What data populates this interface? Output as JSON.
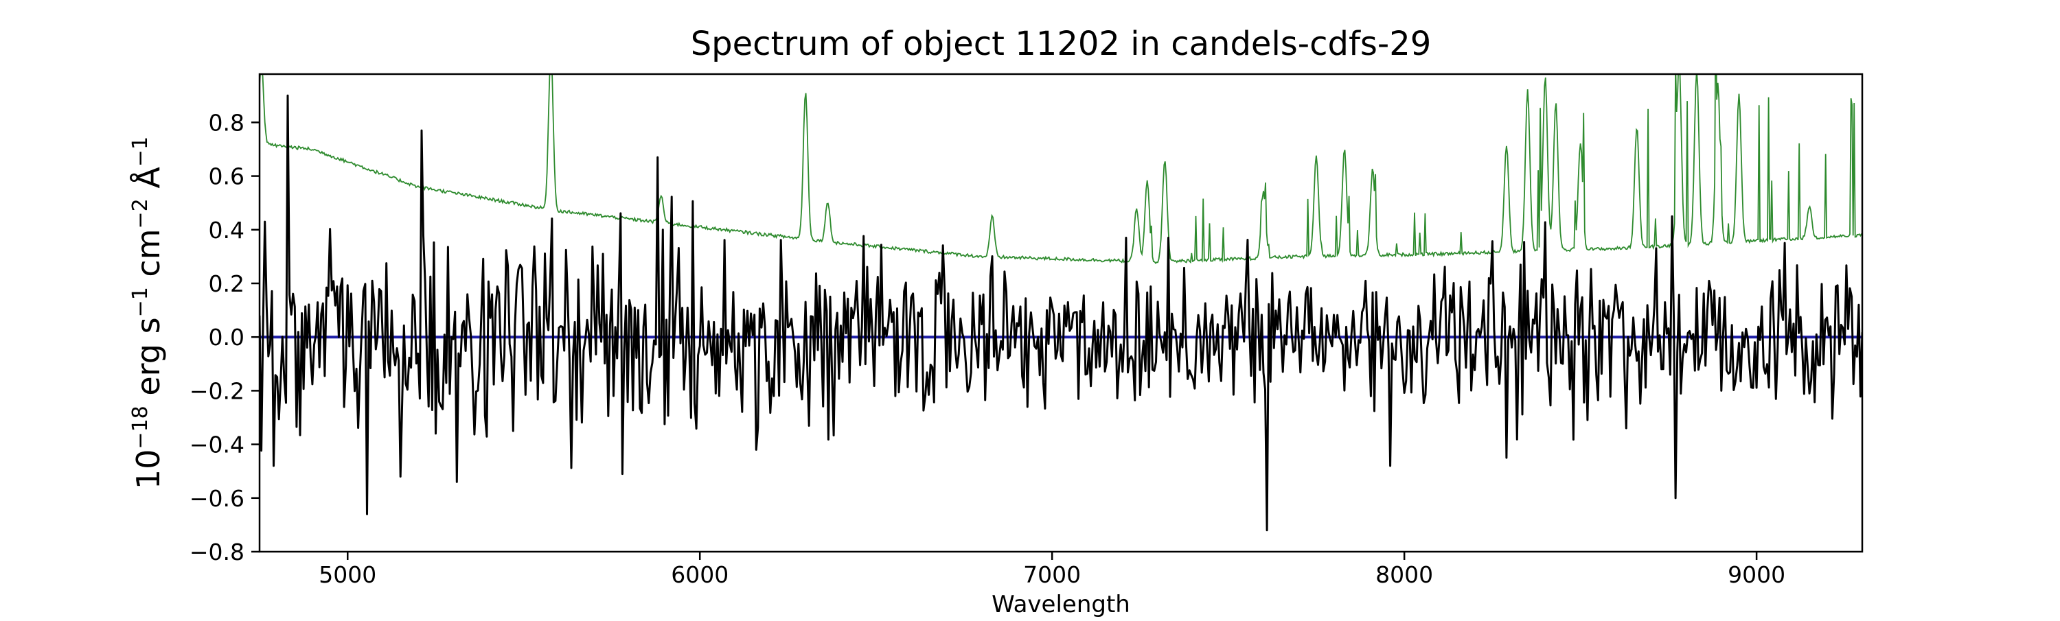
{
  "chart_data": {
    "type": "line",
    "title": "Spectrum of object 11202 in candels-cdfs-29",
    "xlabel": "Wavelength",
    "ylabel": {
      "base": "10",
      "exp1": "−18",
      "erg": " erg s",
      "exp2": "−1",
      "cm": " cm",
      "exp3": "−2",
      "ang": " Å",
      "exp4": "−1"
    },
    "xlim": [
      4750,
      9300
    ],
    "ylim": [
      -0.8,
      0.98
    ],
    "grid": false,
    "xticks": [
      5000,
      6000,
      7000,
      8000,
      9000
    ],
    "yticks": [
      -0.8,
      -0.6,
      -0.4,
      -0.2,
      0.0,
      0.2,
      0.4,
      0.6,
      0.8
    ],
    "ytick_labels": [
      "−0.8",
      "−0.6",
      "−0.4",
      "−0.2",
      "0.0",
      "0.2",
      "0.4",
      "0.6",
      "0.8"
    ],
    "colors": {
      "flux": "#000000",
      "error": "#2e8b2e",
      "zero": "#1f1fa8"
    },
    "series": [
      {
        "role": "flux",
        "x_start": 4750,
        "x_step": 5,
        "noise_sigma": 0.16,
        "highlights": [
          {
            "x": 4830,
            "y": 0.9
          },
          {
            "x": 4790,
            "y": -0.48
          },
          {
            "x": 5055,
            "y": -0.66
          },
          {
            "x": 5210,
            "y": 0.77
          },
          {
            "x": 5150,
            "y": -0.52
          },
          {
            "x": 5310,
            "y": -0.54
          },
          {
            "x": 5780,
            "y": -0.51
          },
          {
            "x": 5880,
            "y": 0.67
          },
          {
            "x": 6160,
            "y": -0.42
          },
          {
            "x": 7330,
            "y": 0.37
          },
          {
            "x": 7610,
            "y": -0.72
          },
          {
            "x": 7960,
            "y": -0.48
          },
          {
            "x": 8290,
            "y": -0.45
          },
          {
            "x": 8770,
            "y": -0.6
          },
          {
            "x": 8760,
            "y": 0.45
          },
          {
            "x": 9290,
            "y": 0.12
          }
        ]
      },
      {
        "role": "error",
        "continuum": [
          {
            "x": 4750,
            "y": 0.72
          },
          {
            "x": 4900,
            "y": 0.7
          },
          {
            "x": 5200,
            "y": 0.56
          },
          {
            "x": 5600,
            "y": 0.47
          },
          {
            "x": 6000,
            "y": 0.41
          },
          {
            "x": 6400,
            "y": 0.35
          },
          {
            "x": 6800,
            "y": 0.3
          },
          {
            "x": 7300,
            "y": 0.28
          },
          {
            "x": 7700,
            "y": 0.3
          },
          {
            "x": 8100,
            "y": 0.31
          },
          {
            "x": 8600,
            "y": 0.33
          },
          {
            "x": 9300,
            "y": 0.38
          }
        ],
        "lines": [
          {
            "x": 4755,
            "h": 0.3
          },
          {
            "x": 5577,
            "h": 0.6
          },
          {
            "x": 5890,
            "h": 0.1
          },
          {
            "x": 6300,
            "h": 0.55
          },
          {
            "x": 6363,
            "h": 0.15
          },
          {
            "x": 6830,
            "h": 0.15
          },
          {
            "x": 7240,
            "h": 0.2
          },
          {
            "x": 7270,
            "h": 0.3
          },
          {
            "x": 7320,
            "h": 0.38
          },
          {
            "x": 7600,
            "h": 0.25
          },
          {
            "x": 7750,
            "h": 0.38
          },
          {
            "x": 7830,
            "h": 0.4
          },
          {
            "x": 7910,
            "h": 0.32
          },
          {
            "x": 8290,
            "h": 0.4
          },
          {
            "x": 8350,
            "h": 0.6
          },
          {
            "x": 8400,
            "h": 0.65
          },
          {
            "x": 8430,
            "h": 0.55
          },
          {
            "x": 8500,
            "h": 0.4
          },
          {
            "x": 8660,
            "h": 0.45
          },
          {
            "x": 8780,
            "h": 0.7
          },
          {
            "x": 8830,
            "h": 0.65
          },
          {
            "x": 8890,
            "h": 0.6
          },
          {
            "x": 8950,
            "h": 0.55
          },
          {
            "x": 9150,
            "h": 0.12
          }
        ]
      },
      {
        "role": "zero",
        "x": [
          4750,
          9300
        ],
        "y": [
          0,
          0
        ]
      }
    ]
  }
}
